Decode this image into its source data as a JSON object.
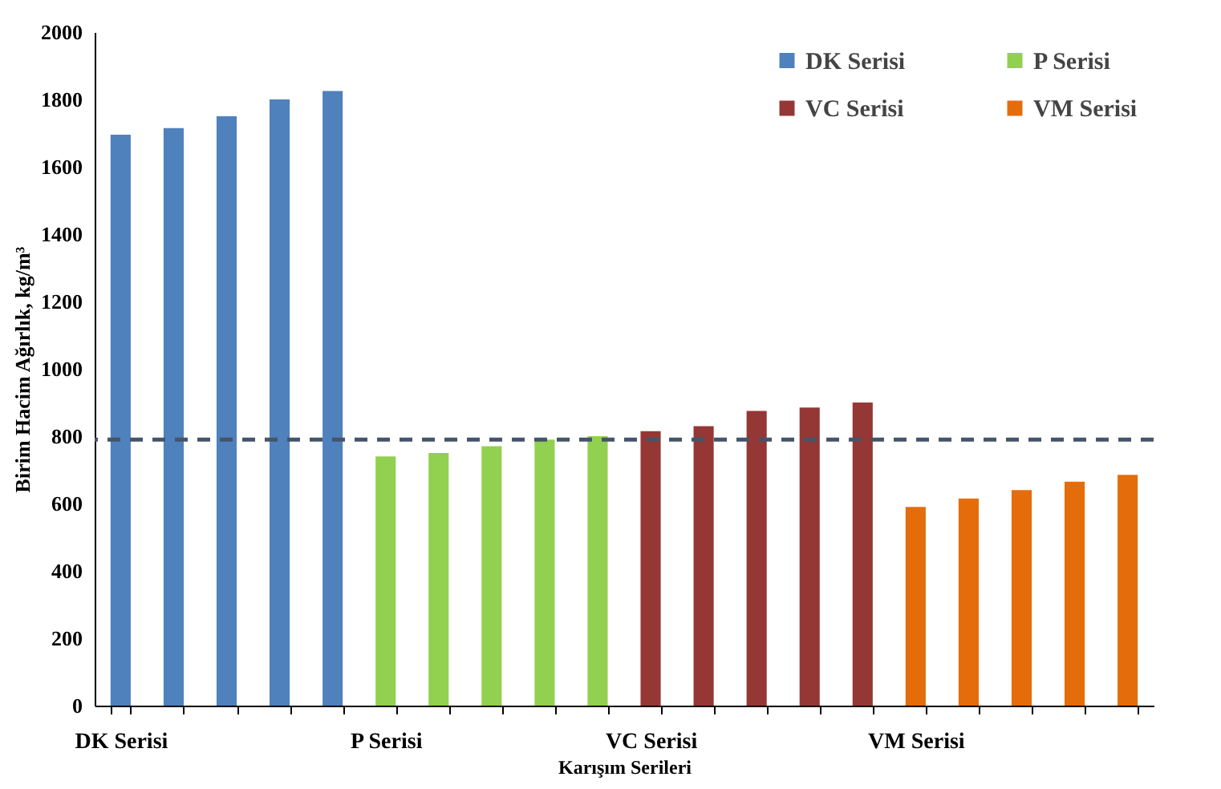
{
  "chart_data": {
    "type": "bar",
    "xlabel": "Karışım Serileri",
    "ylabel": "Birim Hacim Ağırlık, kg/m³",
    "categories": [
      "DK Serisi",
      null,
      null,
      null,
      null,
      "P Serisi",
      null,
      null,
      null,
      null,
      "VC Serisi",
      null,
      null,
      null,
      null,
      "VM Serisi",
      null,
      null,
      null,
      null
    ],
    "series": [
      {
        "name": "DK Serisi",
        "color": "#4f81bd",
        "values": [
          1695,
          1715,
          1750,
          1800,
          1825,
          null,
          null,
          null,
          null,
          null,
          null,
          null,
          null,
          null,
          null,
          null,
          null,
          null,
          null,
          null
        ]
      },
      {
        "name": "P Serisi",
        "color": "#92d050",
        "values": [
          null,
          null,
          null,
          null,
          null,
          740,
          750,
          770,
          790,
          800,
          null,
          null,
          null,
          null,
          null,
          null,
          null,
          null,
          null,
          null
        ]
      },
      {
        "name": "VC Serisi",
        "color": "#953735",
        "values": [
          null,
          null,
          null,
          null,
          null,
          null,
          null,
          null,
          null,
          null,
          815,
          830,
          875,
          885,
          900,
          null,
          null,
          null,
          null,
          null
        ]
      },
      {
        "name": "VM Serisi",
        "color": "#e46c0a",
        "values": [
          null,
          null,
          null,
          null,
          null,
          null,
          null,
          null,
          null,
          null,
          null,
          null,
          null,
          null,
          null,
          590,
          615,
          640,
          665,
          685
        ]
      }
    ],
    "ylim": [
      0,
      2000
    ],
    "yticks": [
      0,
      200,
      400,
      600,
      800,
      1000,
      1200,
      1400,
      1600,
      1800,
      2000
    ],
    "ref_lines": [
      {
        "axis": "y",
        "value": 790,
        "color": "#44546a",
        "line_style": "dashed"
      }
    ],
    "grid": false,
    "legend": "top right"
  }
}
